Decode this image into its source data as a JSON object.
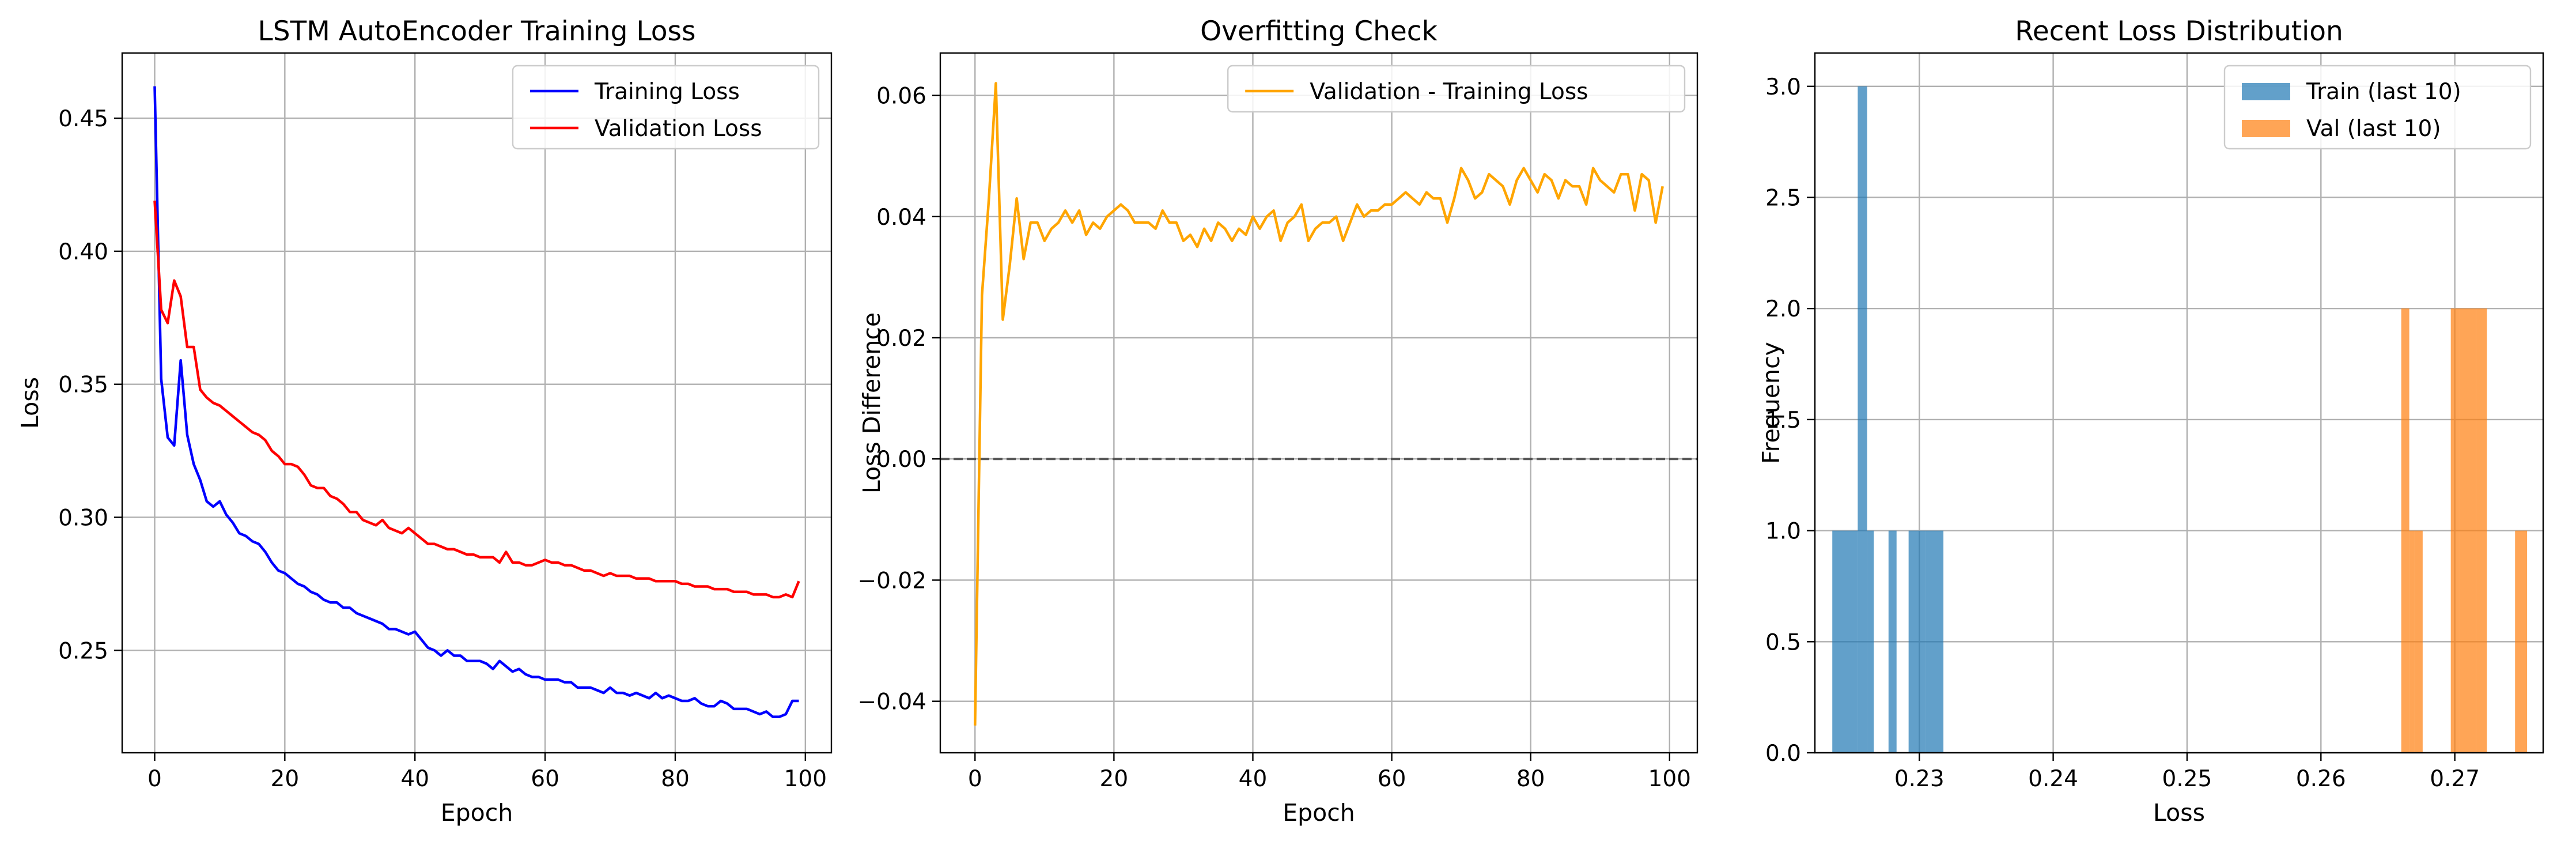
{
  "chart_data": [
    {
      "type": "line",
      "title": "LSTM AutoEncoder Training Loss",
      "xlabel": "Epoch",
      "ylabel": "Loss",
      "xlim": [
        -5,
        104
      ],
      "ylim": [
        0.2115,
        0.4745
      ],
      "xticks": [
        0,
        20,
        40,
        60,
        80,
        100
      ],
      "yticks": [
        0.25,
        0.3,
        0.35,
        0.4,
        0.45
      ],
      "grid": true,
      "legend_position": "top-right",
      "series": [
        {
          "name": "Training Loss",
          "color": "#0000ff",
          "x_start": 0,
          "values": [
            0.462,
            0.352,
            0.33,
            0.327,
            0.359,
            0.331,
            0.32,
            0.314,
            0.306,
            0.304,
            0.306,
            0.301,
            0.298,
            0.294,
            0.293,
            0.291,
            0.29,
            0.287,
            0.283,
            0.28,
            0.279,
            0.277,
            0.275,
            0.274,
            0.272,
            0.271,
            0.269,
            0.268,
            0.268,
            0.266,
            0.266,
            0.264,
            0.263,
            0.262,
            0.261,
            0.26,
            0.258,
            0.258,
            0.257,
            0.256,
            0.257,
            0.254,
            0.251,
            0.25,
            0.248,
            0.25,
            0.248,
            0.248,
            0.246,
            0.246,
            0.246,
            0.245,
            0.243,
            0.246,
            0.244,
            0.242,
            0.243,
            0.241,
            0.24,
            0.24,
            0.239,
            0.239,
            0.239,
            0.238,
            0.238,
            0.236,
            0.236,
            0.236,
            0.235,
            0.234,
            0.236,
            0.234,
            0.234,
            0.233,
            0.234,
            0.233,
            0.232,
            0.234,
            0.232,
            0.233,
            0.232,
            0.231,
            0.231,
            0.232,
            0.23,
            0.229,
            0.229,
            0.231,
            0.23,
            0.228,
            0.228,
            0.228,
            0.227,
            0.226,
            0.227,
            0.225,
            0.225,
            0.226,
            0.231,
            0.231
          ]
        },
        {
          "name": "Validation Loss",
          "color": "#ff0000",
          "x_start": 0,
          "values": [
            0.419,
            0.378,
            0.373,
            0.389,
            0.383,
            0.364,
            0.364,
            0.348,
            0.345,
            0.343,
            0.342,
            0.34,
            0.338,
            0.336,
            0.334,
            0.332,
            0.331,
            0.329,
            0.325,
            0.323,
            0.32,
            0.32,
            0.319,
            0.316,
            0.312,
            0.311,
            0.311,
            0.308,
            0.307,
            0.305,
            0.302,
            0.302,
            0.299,
            0.298,
            0.297,
            0.299,
            0.296,
            0.295,
            0.294,
            0.296,
            0.294,
            0.292,
            0.29,
            0.29,
            0.289,
            0.288,
            0.288,
            0.287,
            0.286,
            0.286,
            0.285,
            0.285,
            0.285,
            0.283,
            0.287,
            0.283,
            0.283,
            0.282,
            0.282,
            0.283,
            0.284,
            0.283,
            0.283,
            0.282,
            0.282,
            0.281,
            0.28,
            0.28,
            0.279,
            0.278,
            0.279,
            0.278,
            0.278,
            0.278,
            0.277,
            0.277,
            0.277,
            0.276,
            0.276,
            0.276,
            0.276,
            0.275,
            0.275,
            0.274,
            0.274,
            0.274,
            0.273,
            0.273,
            0.273,
            0.272,
            0.272,
            0.272,
            0.271,
            0.271,
            0.271,
            0.27,
            0.27,
            0.271,
            0.27,
            0.276
          ]
        }
      ]
    },
    {
      "type": "line",
      "title": "Overfitting Check",
      "xlabel": "Epoch",
      "ylabel": "Loss Difference",
      "xlim": [
        -5,
        104
      ],
      "ylim": [
        -0.0485,
        0.067
      ],
      "xticks": [
        0,
        20,
        40,
        60,
        80,
        100
      ],
      "yticks": [
        -0.04,
        -0.02,
        0.0,
        0.02,
        0.04,
        0.06
      ],
      "grid": true,
      "legend_position": "top-right",
      "reference_line": {
        "y": 0,
        "color": "#333333",
        "style": "dashed"
      },
      "series": [
        {
          "name": "Validation - Training Loss",
          "color": "#ffa500",
          "x_start": 0,
          "values": [
            -0.044,
            0.027,
            0.043,
            0.062,
            0.023,
            0.032,
            0.043,
            0.033,
            0.039,
            0.039,
            0.036,
            0.038,
            0.039,
            0.041,
            0.039,
            0.041,
            0.037,
            0.039,
            0.038,
            0.04,
            0.041,
            0.042,
            0.041,
            0.039,
            0.039,
            0.039,
            0.038,
            0.041,
            0.039,
            0.039,
            0.036,
            0.037,
            0.035,
            0.038,
            0.036,
            0.039,
            0.038,
            0.036,
            0.038,
            0.037,
            0.04,
            0.038,
            0.04,
            0.041,
            0.036,
            0.039,
            0.04,
            0.042,
            0.036,
            0.038,
            0.039,
            0.039,
            0.04,
            0.036,
            0.039,
            0.042,
            0.04,
            0.041,
            0.041,
            0.042,
            0.042,
            0.043,
            0.044,
            0.043,
            0.042,
            0.044,
            0.043,
            0.043,
            0.039,
            0.043,
            0.048,
            0.046,
            0.043,
            0.044,
            0.047,
            0.046,
            0.045,
            0.042,
            0.046,
            0.048,
            0.046,
            0.044,
            0.047,
            0.046,
            0.043,
            0.046,
            0.045,
            0.045,
            0.042,
            0.048,
            0.046,
            0.045,
            0.044,
            0.047,
            0.047,
            0.041,
            0.047,
            0.046,
            0.039,
            0.045
          ]
        }
      ]
    },
    {
      "type": "histogram",
      "title": "Recent Loss Distribution",
      "xlabel": "Loss",
      "ylabel": "Frequency",
      "xlim": [
        0.2222,
        0.2766
      ],
      "ylim": [
        0,
        3.15
      ],
      "xticks": [
        0.23,
        0.24,
        0.25,
        0.26,
        0.27
      ],
      "yticks": [
        0.0,
        0.5,
        1.0,
        1.5,
        2.0,
        2.5,
        3.0
      ],
      "grid": true,
      "legend_position": "top-right",
      "series": [
        {
          "name": "Train (last 10)",
          "color": "#1f77b4",
          "bins": [
            {
              "x0": 0.2235,
              "x1": 0.2254,
              "count": 1
            },
            {
              "x0": 0.2254,
              "x1": 0.2261,
              "count": 3
            },
            {
              "x0": 0.2261,
              "x1": 0.2266,
              "count": 1
            },
            {
              "x0": 0.2277,
              "x1": 0.2283,
              "count": 1
            },
            {
              "x0": 0.2292,
              "x1": 0.2305,
              "count": 1
            },
            {
              "x0": 0.2305,
              "x1": 0.2318,
              "count": 1
            }
          ]
        },
        {
          "name": "Val (last 10)",
          "color": "#ff7f0e",
          "bins": [
            {
              "x0": 0.266,
              "x1": 0.2666,
              "count": 2
            },
            {
              "x0": 0.2666,
              "x1": 0.267,
              "count": 1
            },
            {
              "x0": 0.267,
              "x1": 0.2676,
              "count": 1
            },
            {
              "x0": 0.2697,
              "x1": 0.2704,
              "count": 2
            },
            {
              "x0": 0.2704,
              "x1": 0.2716,
              "count": 2
            },
            {
              "x0": 0.2716,
              "x1": 0.2724,
              "count": 2
            },
            {
              "x0": 0.2745,
              "x1": 0.2754,
              "count": 1
            }
          ]
        }
      ]
    }
  ]
}
